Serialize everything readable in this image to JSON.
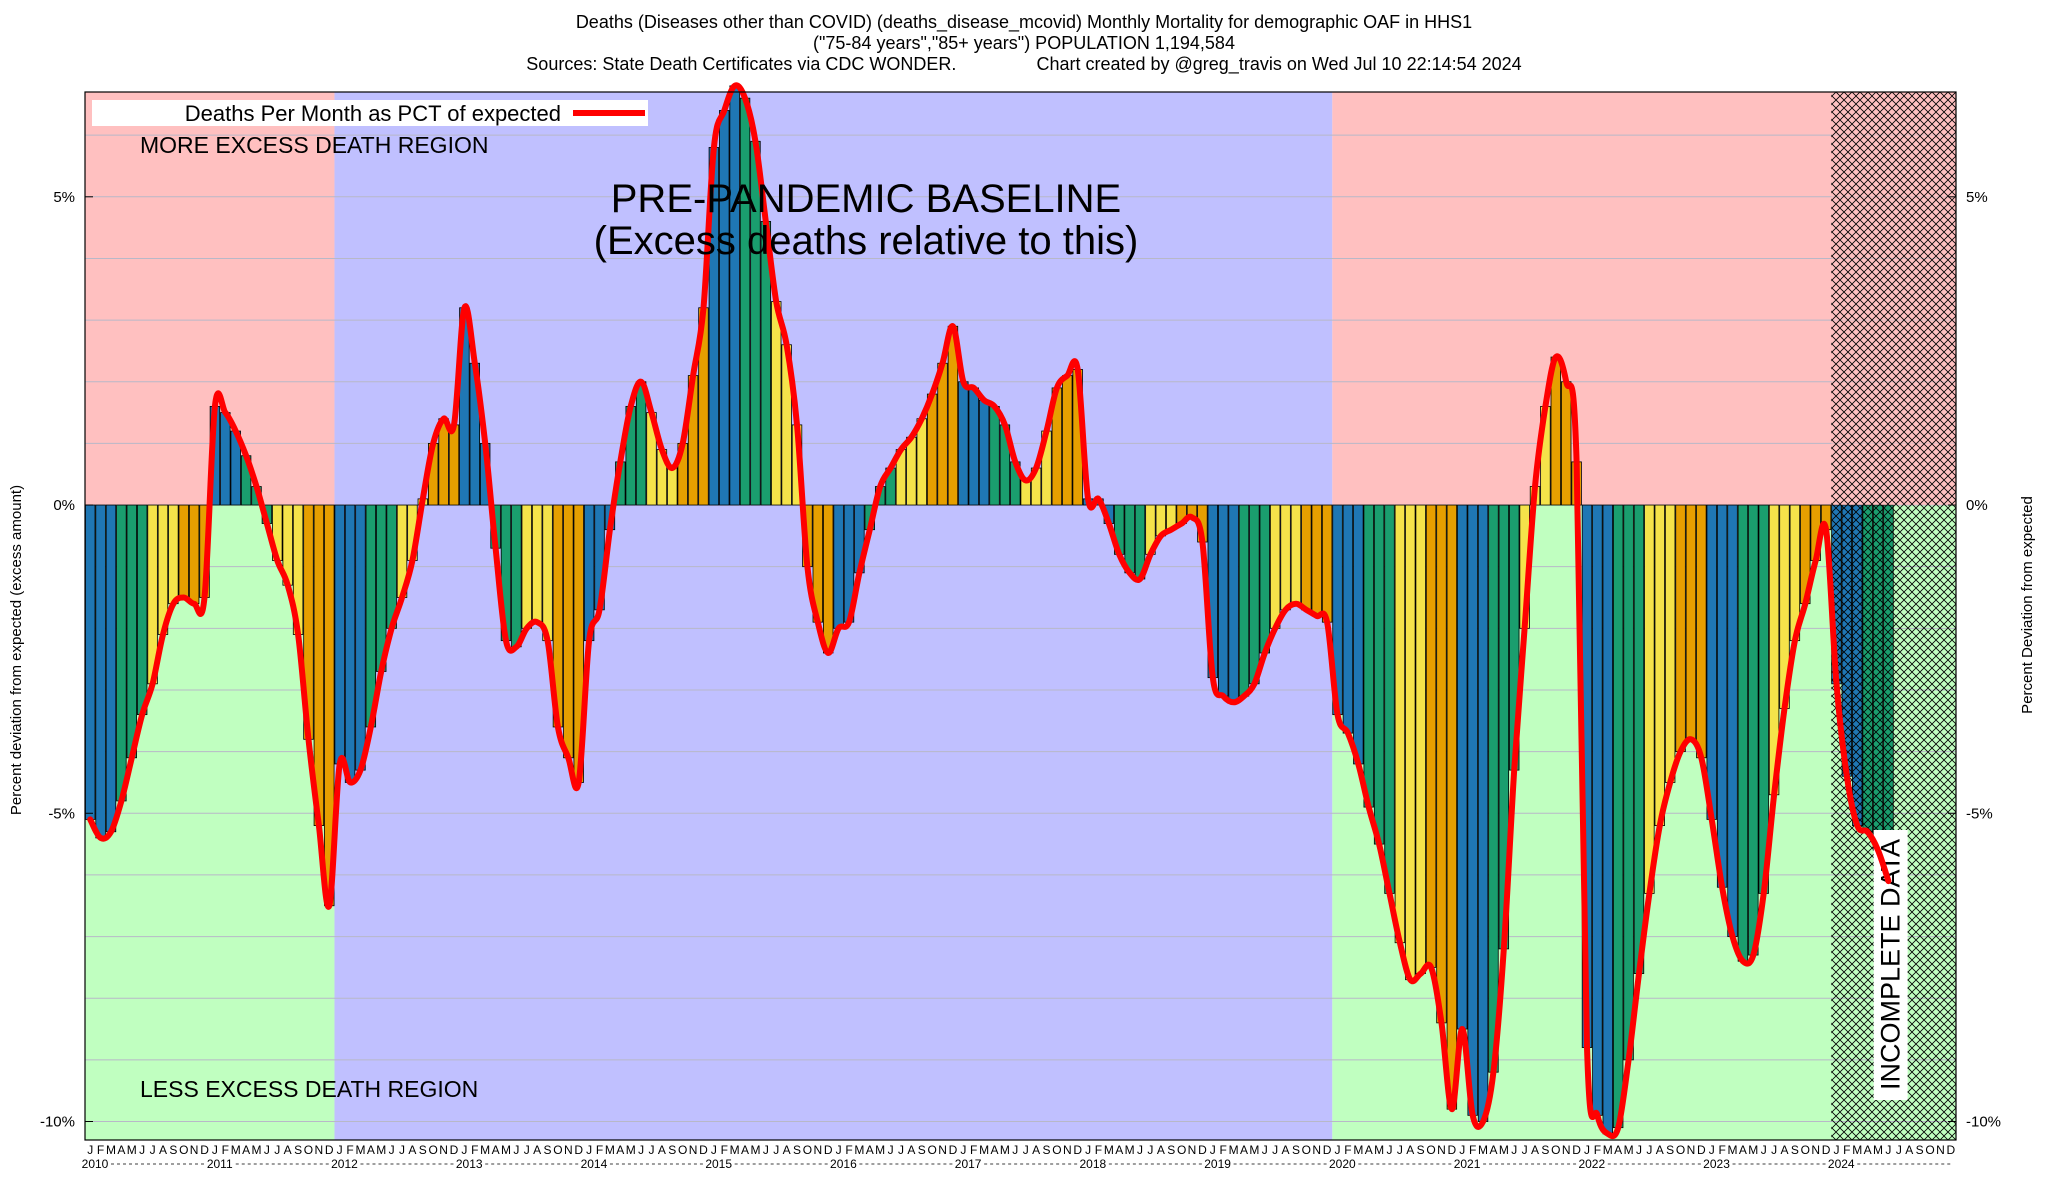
{
  "title": {
    "line1": "Deaths (Diseases other than COVID) (deaths_disease_mcovid) Monthly Mortality for demographic OAF in HHS1",
    "line2": "(\"75-84 years\",\"85+ years\") POPULATION 1,194,584",
    "line3": "Sources: State Death Certificates via CDC WONDER.                Chart created by @greg_travis on Wed Jul 10 22:14:54 2024"
  },
  "legend": {
    "label": "Deaths Per Month as PCT of expected",
    "color": "#ff0000"
  },
  "annotations": {
    "more_excess": "MORE EXCESS DEATH REGION",
    "less_excess": "LESS EXCESS DEATH REGION",
    "baseline_line1": "PRE-PANDEMIC BASELINE",
    "baseline_line2": "(Excess deaths relative to this)",
    "incomplete": "INCOMPLETE DATA"
  },
  "y_axis": {
    "left_label": "Percent deviation from expected (excess amount)",
    "right_label": "Percent Deviation from expected",
    "ticks": [
      {
        "value": 5,
        "label": "5%"
      },
      {
        "value": 0,
        "label": "0%"
      },
      {
        "value": -5,
        "label": "-5%"
      },
      {
        "value": -10,
        "label": "-10%"
      }
    ]
  },
  "colors": {
    "more_region": "#ffc0c0",
    "less_region": "#c0ffc0",
    "baseline_region": "#c0c0ff",
    "bar_palette": [
      "#1f77b4",
      "#1a9e6e",
      "#f5e34a",
      "#e69f00"
    ],
    "line": "#ff0000"
  },
  "chart_data": {
    "type": "bar",
    "ylim": [
      -10.3,
      6.7
    ],
    "baseline_period": [
      "2012-01",
      "2019-12"
    ],
    "incomplete_from": "2024-01",
    "x_axis": {
      "month_letters": [
        "J",
        "F",
        "M",
        "A",
        "M",
        "J",
        "J",
        "A",
        "S",
        "O",
        "N",
        "D"
      ],
      "years": [
        "2010",
        "2011",
        "2012",
        "2013",
        "2014",
        "2015",
        "2016",
        "2017",
        "2018",
        "2019",
        "2020",
        "2021",
        "2022",
        "2023",
        "2024"
      ]
    },
    "series": [
      {
        "name": "Deaths Per Month as PCT of expected",
        "start": "2010-01",
        "values": [
          -5.1,
          -5.4,
          -5.3,
          -4.8,
          -4.1,
          -3.4,
          -2.9,
          -2.1,
          -1.6,
          -1.5,
          -1.6,
          -1.5,
          1.6,
          1.5,
          1.2,
          0.8,
          0.3,
          -0.3,
          -0.9,
          -1.3,
          -2.1,
          -3.8,
          -5.2,
          -6.5,
          -4.2,
          -4.5,
          -4.3,
          -3.6,
          -2.7,
          -2.0,
          -1.5,
          -0.9,
          0.1,
          1.0,
          1.4,
          1.3,
          3.2,
          2.3,
          1.0,
          -0.7,
          -2.2,
          -2.3,
          -2.0,
          -1.9,
          -2.2,
          -3.6,
          -4.1,
          -4.5,
          -2.2,
          -1.7,
          -0.4,
          0.7,
          1.6,
          2.0,
          1.5,
          0.9,
          0.6,
          1.0,
          2.1,
          3.2,
          5.8,
          6.4,
          6.8,
          6.6,
          5.9,
          4.6,
          3.3,
          2.6,
          1.3,
          -1.0,
          -1.9,
          -2.4,
          -2.0,
          -1.9,
          -1.1,
          -0.4,
          0.3,
          0.6,
          0.9,
          1.1,
          1.4,
          1.8,
          2.3,
          2.9,
          2.0,
          1.9,
          1.7,
          1.6,
          1.3,
          0.7,
          0.4,
          0.6,
          1.2,
          1.9,
          2.1,
          2.2,
          0.1,
          0.1,
          -0.3,
          -0.8,
          -1.1,
          -1.2,
          -0.8,
          -0.5,
          -0.4,
          -0.3,
          -0.2,
          -0.6,
          -2.8,
          -3.1,
          -3.2,
          -3.1,
          -2.9,
          -2.4,
          -2.0,
          -1.7,
          -1.6,
          -1.7,
          -1.8,
          -1.9,
          -3.4,
          -3.7,
          -4.2,
          -4.9,
          -5.5,
          -6.3,
          -7.1,
          -7.7,
          -7.6,
          -7.5,
          -8.4,
          -9.8,
          -8.5,
          -9.9,
          -10.0,
          -9.2,
          -7.2,
          -4.3,
          -2.0,
          0.3,
          1.6,
          2.4,
          2.0,
          0.7,
          -8.8,
          -9.9,
          -10.2,
          -10.1,
          -9.0,
          -7.6,
          -6.3,
          -5.2,
          -4.5,
          -4.0,
          -3.8,
          -4.1,
          -5.1,
          -6.2,
          -7.0,
          -7.4,
          -7.3,
          -6.3,
          -4.7,
          -3.3,
          -2.2,
          -1.6,
          -0.9,
          -0.4,
          -2.9,
          -4.4,
          -5.2,
          -5.3,
          -5.6,
          -6.1
        ]
      }
    ]
  }
}
